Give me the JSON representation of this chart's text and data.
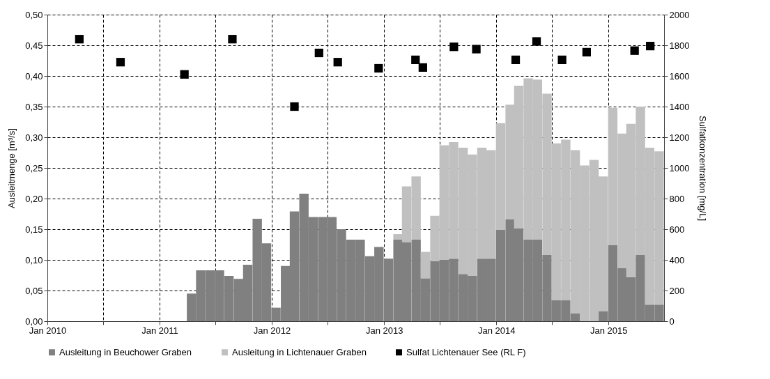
{
  "chart_data": {
    "type": "bar",
    "stacked": true,
    "ylabel": "Ausleitmenge  [m³/s]",
    "y2label": "Sulfatkonzentration  [mg/L]",
    "x": [
      "2011-04-15",
      "2011-05-15",
      "2011-06-15",
      "2011-07-15",
      "2011-08-15",
      "2011-09-15",
      "2011-10-15",
      "2011-11-15",
      "2011-12-15",
      "2012-01-15",
      "2012-02-15",
      "2012-03-15",
      "2012-04-15",
      "2012-05-15",
      "2012-06-15",
      "2012-07-15",
      "2012-08-15",
      "2012-09-15",
      "2012-10-15",
      "2012-11-15",
      "2012-12-15",
      "2013-01-15",
      "2013-02-15",
      "2013-03-15",
      "2013-04-15",
      "2013-05-15",
      "2013-06-15",
      "2013-07-15",
      "2013-08-15",
      "2013-09-15",
      "2013-10-15",
      "2013-11-15",
      "2013-12-15",
      "2014-01-15",
      "2014-02-15",
      "2014-03-15",
      "2014-04-15",
      "2014-05-15",
      "2014-06-15",
      "2014-07-15",
      "2014-08-15",
      "2014-09-15",
      "2014-10-15",
      "2014-11-15",
      "2014-12-15",
      "2015-01-15",
      "2015-02-15",
      "2015-03-15",
      "2015-04-15",
      "2015-05-15",
      "2015-06-15"
    ],
    "series": [
      {
        "name": "Ausleitung in Beuchower Graben",
        "color": "#808080",
        "values": [
          0.045,
          0.083,
          0.083,
          0.083,
          0.074,
          0.069,
          0.092,
          0.167,
          0.127,
          0.022,
          0.09,
          0.179,
          0.208,
          0.17,
          0.17,
          0.17,
          0.15,
          0.133,
          0.133,
          0.106,
          0.121,
          0.102,
          0.133,
          0.129,
          0.133,
          0.07,
          0.098,
          0.1,
          0.102,
          0.077,
          0.074,
          0.102,
          0.102,
          0.149,
          0.166,
          0.151,
          0.133,
          0.133,
          0.108,
          0.034,
          0.034,
          0.013,
          0,
          0,
          0.016,
          0.124,
          0.087,
          0.072,
          0.108,
          0.027,
          0.027
        ]
      },
      {
        "name": "Ausleitung in Lichtenauer Graben",
        "color": "#c0c0c0",
        "values": [
          0,
          0,
          0,
          0,
          0,
          0,
          0,
          0,
          0,
          0,
          0,
          0,
          0,
          0,
          0,
          0,
          0,
          0,
          0,
          0,
          0,
          0,
          0.009,
          0.091,
          0.103,
          0.043,
          0.074,
          0.187,
          0.19,
          0.206,
          0.198,
          0.181,
          0.177,
          0.174,
          0.187,
          0.233,
          0.263,
          0.261,
          0.263,
          0.256,
          0.262,
          0.266,
          0.254,
          0.263,
          0.22,
          0.224,
          0.219,
          0.25,
          0.242,
          0.256,
          0.25
        ]
      },
      {
        "name": "Sulfat Lichtenauer See (RL F)",
        "color": "#000000",
        "type": "scatter",
        "marker": "square",
        "axis": "y2",
        "x": [
          "2010-04-15",
          "2010-08-27",
          "2011-03-23",
          "2011-08-26",
          "2012-03-15",
          "2012-06-03",
          "2012-08-03",
          "2012-12-14",
          "2013-04-13",
          "2013-05-07",
          "2013-08-16",
          "2013-10-28",
          "2014-03-05",
          "2014-05-12",
          "2014-08-03",
          "2014-10-22",
          "2015-03-27",
          "2015-05-17"
        ],
        "values": [
          1840,
          1690,
          1610,
          1840,
          1400,
          1750,
          1690,
          1650,
          1705,
          1655,
          1790,
          1775,
          1705,
          1825,
          1705,
          1755,
          1765,
          1795
        ]
      }
    ],
    "xlim": [
      "2010-01",
      "2015-07"
    ],
    "xticks": [
      {
        "value": "2010-01",
        "label": "Jan 2010"
      },
      {
        "value": "2010-07",
        "label": null
      },
      {
        "value": "2011-01",
        "label": "Jan 2011"
      },
      {
        "value": "2011-07",
        "label": null
      },
      {
        "value": "2012-01",
        "label": "Jan 2012"
      },
      {
        "value": "2012-07",
        "label": null
      },
      {
        "value": "2013-01",
        "label": "Jan 2013"
      },
      {
        "value": "2013-07",
        "label": null
      },
      {
        "value": "2014-01",
        "label": "Jan 2014"
      },
      {
        "value": "2014-07",
        "label": null
      },
      {
        "value": "2015-01",
        "label": "Jan 2015"
      }
    ],
    "ylim": [
      0,
      0.5
    ],
    "yticks": [
      {
        "value": 0,
        "label": "0,00"
      },
      {
        "value": 0.05,
        "label": "0,05"
      },
      {
        "value": 0.1,
        "label": "0,10"
      },
      {
        "value": 0.15,
        "label": "0,15"
      },
      {
        "value": 0.2,
        "label": "0,20"
      },
      {
        "value": 0.25,
        "label": "0,25"
      },
      {
        "value": 0.3,
        "label": "0,30"
      },
      {
        "value": 0.35,
        "label": "0,35"
      },
      {
        "value": 0.4,
        "label": "0,40"
      },
      {
        "value": 0.45,
        "label": "0,45"
      },
      {
        "value": 0.5,
        "label": "0,50"
      }
    ],
    "y2lim": [
      0,
      2000
    ],
    "y2ticks": [
      0,
      200,
      400,
      600,
      800,
      1000,
      1200,
      1400,
      1600,
      1800,
      2000
    ],
    "grid": true,
    "legend": "bottom"
  }
}
